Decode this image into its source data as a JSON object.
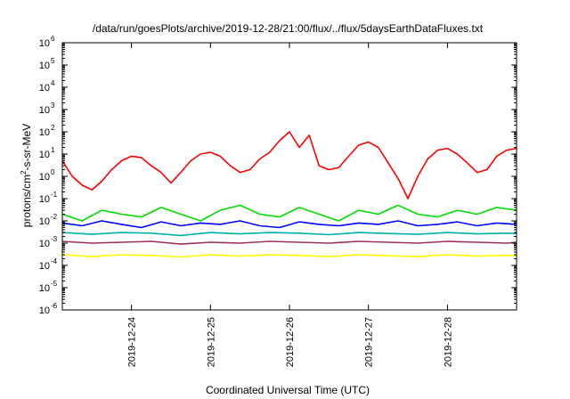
{
  "chart_data": {
    "type": "line",
    "title": "/data/run/goesPlots/archive/2019-12-28/21:00/flux/../flux/5daysEarthDataFluxes.txt",
    "xlabel": "Coordinated Universal Time (UTC)",
    "ylabel_parts": [
      "protons/cm",
      "2",
      "-s-sr-MeV"
    ],
    "y_scale": "log",
    "ylim": [
      1e-06,
      1000000.0
    ],
    "y_ticks": [
      {
        "exp": "-6",
        "value": 1e-06
      },
      {
        "exp": "-5",
        "value": 1e-05
      },
      {
        "exp": "-4",
        "value": 0.0001
      },
      {
        "exp": "-3",
        "value": 0.001
      },
      {
        "exp": "-2",
        "value": 0.01
      },
      {
        "exp": "-1",
        "value": 0.1
      },
      {
        "exp": "0",
        "value": 1
      },
      {
        "exp": "1",
        "value": 10
      },
      {
        "exp": "2",
        "value": 100
      },
      {
        "exp": "3",
        "value": 1000.0
      },
      {
        "exp": "4",
        "value": 10000.0
      },
      {
        "exp": "5",
        "value": 100000.0
      },
      {
        "exp": "6",
        "value": 1000000.0
      }
    ],
    "y_tick_base": "10",
    "xlim": [
      "2019-12-23T03:00",
      "2019-12-28T21:00"
    ],
    "x_ticks": [
      "2019-12-24",
      "2019-12-25",
      "2019-12-26",
      "2019-12-27",
      "2019-12-28"
    ],
    "grid": false,
    "series": [
      {
        "color": "#ff0000",
        "x": [
          "2019-12-23T03:00",
          "2019-12-23T06:00",
          "2019-12-23T09:00",
          "2019-12-23T12:00",
          "2019-12-23T15:00",
          "2019-12-23T18:00",
          "2019-12-23T21:00",
          "2019-12-24T00:00",
          "2019-12-24T03:00",
          "2019-12-24T06:00",
          "2019-12-24T09:00",
          "2019-12-24T12:00",
          "2019-12-24T15:00",
          "2019-12-24T18:00",
          "2019-12-24T21:00",
          "2019-12-25T00:00",
          "2019-12-25T03:00",
          "2019-12-25T06:00",
          "2019-12-25T09:00",
          "2019-12-25T12:00",
          "2019-12-25T15:00",
          "2019-12-25T18:00",
          "2019-12-25T21:00",
          "2019-12-26T00:00",
          "2019-12-26T03:00",
          "2019-12-26T06:00",
          "2019-12-26T09:00",
          "2019-12-26T12:00",
          "2019-12-26T15:00",
          "2019-12-26T18:00",
          "2019-12-26T21:00",
          "2019-12-27T00:00",
          "2019-12-27T03:00",
          "2019-12-27T06:00",
          "2019-12-27T09:00",
          "2019-12-27T12:00",
          "2019-12-27T15:00",
          "2019-12-27T18:00",
          "2019-12-27T21:00",
          "2019-12-28T00:00",
          "2019-12-28T03:00",
          "2019-12-28T06:00",
          "2019-12-28T09:00",
          "2019-12-28T12:00",
          "2019-12-28T15:00",
          "2019-12-28T18:00",
          "2019-12-28T21:00"
        ],
        "y": [
          5,
          1,
          0.4,
          0.25,
          0.6,
          2,
          5,
          8,
          7,
          3,
          1.5,
          0.5,
          1.5,
          5,
          10,
          12,
          8,
          3,
          1.5,
          2,
          6,
          12,
          40,
          100,
          20,
          70,
          3,
          2,
          2.5,
          8,
          25,
          35,
          20,
          4,
          0.8,
          0.1,
          1,
          6,
          15,
          18,
          10,
          4,
          1.5,
          2,
          8,
          15,
          18
        ]
      },
      {
        "color": "#00dd00",
        "x": [
          "2019-12-23T03:00",
          "2019-12-23T09:00",
          "2019-12-23T15:00",
          "2019-12-23T21:00",
          "2019-12-24T03:00",
          "2019-12-24T09:00",
          "2019-12-24T15:00",
          "2019-12-24T21:00",
          "2019-12-25T03:00",
          "2019-12-25T09:00",
          "2019-12-25T15:00",
          "2019-12-25T21:00",
          "2019-12-26T03:00",
          "2019-12-26T09:00",
          "2019-12-26T15:00",
          "2019-12-26T21:00",
          "2019-12-27T03:00",
          "2019-12-27T09:00",
          "2019-12-27T15:00",
          "2019-12-27T21:00",
          "2019-12-28T03:00",
          "2019-12-28T09:00",
          "2019-12-28T15:00",
          "2019-12-28T21:00"
        ],
        "y": [
          0.02,
          0.01,
          0.03,
          0.02,
          0.015,
          0.04,
          0.02,
          0.01,
          0.03,
          0.05,
          0.02,
          0.015,
          0.04,
          0.02,
          0.01,
          0.03,
          0.02,
          0.05,
          0.02,
          0.015,
          0.03,
          0.02,
          0.04,
          0.03
        ]
      },
      {
        "color": "#0000ff",
        "x": [
          "2019-12-23T03:00",
          "2019-12-23T09:00",
          "2019-12-23T15:00",
          "2019-12-23T21:00",
          "2019-12-24T03:00",
          "2019-12-24T09:00",
          "2019-12-24T15:00",
          "2019-12-24T21:00",
          "2019-12-25T03:00",
          "2019-12-25T09:00",
          "2019-12-25T15:00",
          "2019-12-25T21:00",
          "2019-12-26T03:00",
          "2019-12-26T09:00",
          "2019-12-26T15:00",
          "2019-12-26T21:00",
          "2019-12-27T03:00",
          "2019-12-27T09:00",
          "2019-12-27T15:00",
          "2019-12-27T21:00",
          "2019-12-28T03:00",
          "2019-12-28T09:00",
          "2019-12-28T15:00",
          "2019-12-28T21:00"
        ],
        "y": [
          0.008,
          0.006,
          0.01,
          0.007,
          0.005,
          0.009,
          0.006,
          0.008,
          0.007,
          0.01,
          0.006,
          0.005,
          0.009,
          0.007,
          0.006,
          0.008,
          0.007,
          0.01,
          0.006,
          0.007,
          0.009,
          0.006,
          0.008,
          0.007
        ]
      },
      {
        "color": "#00b0b0",
        "x": [
          "2019-12-23T03:00",
          "2019-12-23T12:00",
          "2019-12-23T21:00",
          "2019-12-24T06:00",
          "2019-12-24T15:00",
          "2019-12-25T00:00",
          "2019-12-25T09:00",
          "2019-12-25T18:00",
          "2019-12-26T03:00",
          "2019-12-26T12:00",
          "2019-12-26T21:00",
          "2019-12-27T06:00",
          "2019-12-27T15:00",
          "2019-12-28T00:00",
          "2019-12-28T09:00",
          "2019-12-28T18:00",
          "2019-12-28T21:00"
        ],
        "y": [
          0.003,
          0.0025,
          0.003,
          0.0028,
          0.0022,
          0.003,
          0.0026,
          0.003,
          0.0028,
          0.0024,
          0.003,
          0.0027,
          0.0025,
          0.003,
          0.0026,
          0.0028,
          0.0027
        ]
      },
      {
        "color": "#9b3060",
        "x": [
          "2019-12-23T03:00",
          "2019-12-23T12:00",
          "2019-12-23T21:00",
          "2019-12-24T06:00",
          "2019-12-24T15:00",
          "2019-12-25T00:00",
          "2019-12-25T09:00",
          "2019-12-25T18:00",
          "2019-12-26T03:00",
          "2019-12-26T12:00",
          "2019-12-26T21:00",
          "2019-12-27T06:00",
          "2019-12-27T15:00",
          "2019-12-28T00:00",
          "2019-12-28T09:00",
          "2019-12-28T18:00",
          "2019-12-28T21:00"
        ],
        "y": [
          0.0012,
          0.001,
          0.0011,
          0.0012,
          0.0009,
          0.0011,
          0.001,
          0.0012,
          0.0011,
          0.001,
          0.0012,
          0.0011,
          0.001,
          0.0012,
          0.0011,
          0.001,
          0.0011
        ]
      },
      {
        "color": "#ffff00",
        "x": [
          "2019-12-23T03:00",
          "2019-12-23T12:00",
          "2019-12-23T21:00",
          "2019-12-24T06:00",
          "2019-12-24T15:00",
          "2019-12-25T00:00",
          "2019-12-25T09:00",
          "2019-12-25T18:00",
          "2019-12-26T03:00",
          "2019-12-26T12:00",
          "2019-12-26T21:00",
          "2019-12-27T06:00",
          "2019-12-27T15:00",
          "2019-12-28T00:00",
          "2019-12-28T09:00",
          "2019-12-28T18:00",
          "2019-12-28T21:00"
        ],
        "y": [
          0.0003,
          0.00025,
          0.0003,
          0.00028,
          0.00024,
          0.0003,
          0.00026,
          0.0003,
          0.00028,
          0.00025,
          0.0003,
          0.00027,
          0.00025,
          0.0003,
          0.00026,
          0.00028,
          0.00027
        ]
      }
    ]
  }
}
